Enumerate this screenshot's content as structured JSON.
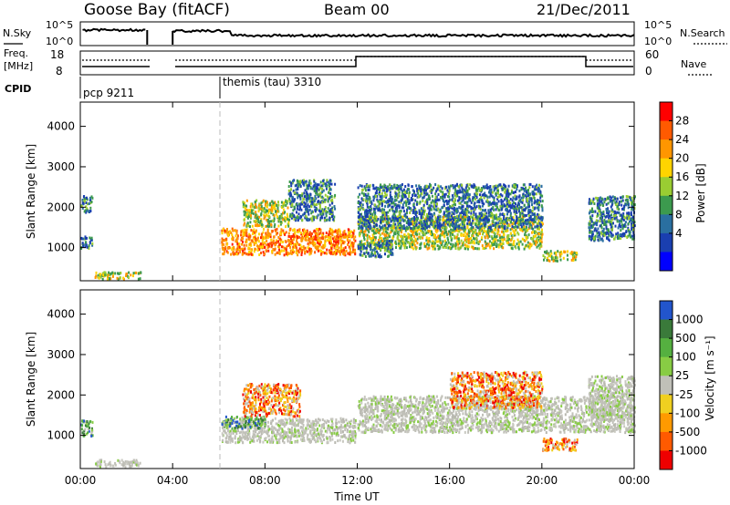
{
  "header": {
    "station": "Goose Bay (fitACF)",
    "beam": "Beam 00",
    "date": "21/Dec/2011"
  },
  "noise_panel": {
    "left_label": "N.Sky",
    "right_label": "N.Search",
    "left_ticks": [
      "10^5",
      "10^0"
    ],
    "right_ticks": [
      "10^5",
      "10^0"
    ]
  },
  "freq_panel": {
    "left_label_1": "Freq.",
    "left_label_2": "[MHz]",
    "right_label": "Nave",
    "left_ticks": [
      "18",
      "8"
    ],
    "right_ticks": [
      "60",
      "0"
    ]
  },
  "cpid_panel": {
    "label": "CPID",
    "programs": [
      {
        "name": "pcp 9211",
        "start_hour": 0
      },
      {
        "name": "themis (tau) 3310",
        "start_hour": 6
      }
    ]
  },
  "time_axis": {
    "label": "Time UT",
    "ticks": [
      "00:00",
      "04:00",
      "08:00",
      "12:00",
      "16:00",
      "20:00",
      "00:00"
    ]
  },
  "power_colorbar": {
    "label": "Power [dB]",
    "ticks": [
      "28",
      "24",
      "20",
      "16",
      "12",
      "8",
      "4"
    ],
    "colors": [
      "#ff0000",
      "#ff5a00",
      "#ff9600",
      "#ffd400",
      "#9acd32",
      "#3c9a4e",
      "#2a6fa0",
      "#1a3fb0",
      "#0000ff"
    ]
  },
  "velocity_colorbar": {
    "label": "Velocity [m s⁻¹]",
    "ticks": [
      "1000",
      "500",
      "100",
      "25",
      "-25",
      "-100",
      "-500",
      "-1000"
    ],
    "colors": [
      "#2255cc",
      "#3a7a3a",
      "#55b040",
      "#88cc44",
      "#c0c0b8",
      "#f0d020",
      "#ff9a00",
      "#ff5a00",
      "#ee0000"
    ]
  },
  "chart_data": {
    "type": "heatmap",
    "x_range_hours": [
      0,
      24
    ],
    "y_range_km": [
      180,
      4600
    ],
    "y_ticks": [
      "4000",
      "3000",
      "2000",
      "1000"
    ],
    "ylabel": "Slant Range [km]",
    "xlabel": "Time UT",
    "panels": [
      {
        "name": "Power [dB]",
        "regions": [
          {
            "t0": 6.1,
            "t1": 11.9,
            "r0": 850,
            "r1": 1500,
            "value": "high"
          },
          {
            "t0": 7.0,
            "t1": 9.0,
            "r0": 1550,
            "r1": 2200,
            "value": "medium"
          },
          {
            "t0": 9.0,
            "t1": 11.0,
            "r0": 1700,
            "r1": 2700,
            "value": "low"
          },
          {
            "t0": 12.0,
            "t1": 20.0,
            "r0": 1000,
            "r1": 1800,
            "value": "medium"
          },
          {
            "t0": 12.0,
            "t1": 20.0,
            "r0": 1500,
            "r1": 2600,
            "value": "low"
          },
          {
            "t0": 20.0,
            "t1": 21.5,
            "r0": 700,
            "r1": 950,
            "value": "medium"
          },
          {
            "t0": 22.0,
            "t1": 24.0,
            "r0": 1200,
            "r1": 2300,
            "value": "low"
          },
          {
            "t0": 0.6,
            "t1": 2.6,
            "r0": 250,
            "r1": 420,
            "value": "medium"
          },
          {
            "t0": 0.0,
            "t1": 0.5,
            "r0": 1000,
            "r1": 1300,
            "value": "low"
          },
          {
            "t0": 0.0,
            "t1": 0.5,
            "r0": 1900,
            "r1": 2300,
            "value": "low"
          },
          {
            "t0": 12.0,
            "t1": 13.5,
            "r0": 800,
            "r1": 1200,
            "value": "low"
          }
        ]
      },
      {
        "name": "Velocity [m s-1]",
        "regions": [
          {
            "t0": 6.1,
            "t1": 11.9,
            "r0": 850,
            "r1": 1450,
            "value": "near-zero"
          },
          {
            "t0": 6.1,
            "t1": 8.0,
            "r0": 1200,
            "r1": 1500,
            "value": "positive"
          },
          {
            "t0": 7.0,
            "t1": 9.5,
            "r0": 1500,
            "r1": 2300,
            "value": "negative"
          },
          {
            "t0": 12.0,
            "t1": 24.0,
            "r0": 1100,
            "r1": 2000,
            "value": "near-zero"
          },
          {
            "t0": 16.0,
            "t1": 20.0,
            "r0": 1700,
            "r1": 2600,
            "value": "negative"
          },
          {
            "t0": 20.0,
            "t1": 21.5,
            "r0": 650,
            "r1": 950,
            "value": "negative"
          },
          {
            "t0": 22.0,
            "t1": 24.0,
            "r0": 1400,
            "r1": 2500,
            "value": "near-zero"
          },
          {
            "t0": 0.6,
            "t1": 2.6,
            "r0": 250,
            "r1": 420,
            "value": "near-zero"
          },
          {
            "t0": 0.0,
            "t1": 0.5,
            "r0": 1000,
            "r1": 1400,
            "value": "positive"
          }
        ]
      }
    ]
  }
}
